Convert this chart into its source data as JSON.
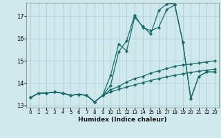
{
  "xlabel": "Humidex (Indice chaleur)",
  "background_color": "#cfe8ec",
  "grid_color": "#aacdd4",
  "line_color": "#1a6b6b",
  "xlim": [
    -0.5,
    23.5
  ],
  "ylim": [
    12.9,
    17.6
  ],
  "yticks": [
    13,
    14,
    15,
    16,
    17
  ],
  "xticks": [
    0,
    1,
    2,
    3,
    4,
    5,
    6,
    7,
    8,
    9,
    10,
    11,
    12,
    13,
    14,
    15,
    16,
    17,
    18,
    19,
    20,
    21,
    22,
    23
  ],
  "series": [
    [
      13.35,
      13.55,
      13.55,
      13.6,
      13.55,
      13.45,
      13.5,
      13.45,
      13.15,
      13.45,
      14.35,
      15.75,
      15.45,
      16.95,
      16.55,
      16.2,
      17.25,
      17.55,
      17.55,
      15.85,
      13.3,
      14.3,
      14.5,
      14.5
    ],
    [
      13.35,
      13.55,
      13.55,
      13.6,
      13.55,
      13.45,
      13.5,
      13.45,
      13.15,
      13.45,
      13.9,
      15.4,
      15.9,
      17.05,
      16.5,
      16.35,
      16.5,
      17.3,
      17.5,
      15.85,
      13.3,
      14.3,
      14.5,
      14.5
    ],
    [
      13.35,
      13.55,
      13.55,
      13.6,
      13.55,
      13.45,
      13.5,
      13.45,
      13.15,
      13.45,
      13.7,
      13.85,
      14.05,
      14.2,
      14.3,
      14.45,
      14.55,
      14.65,
      14.75,
      14.82,
      14.85,
      14.9,
      14.95,
      15.0
    ],
    [
      13.35,
      13.55,
      13.55,
      13.6,
      13.55,
      13.45,
      13.5,
      13.45,
      13.15,
      13.45,
      13.6,
      13.72,
      13.82,
      13.92,
      14.02,
      14.12,
      14.2,
      14.28,
      14.35,
      14.42,
      14.48,
      14.53,
      14.58,
      14.62
    ]
  ]
}
